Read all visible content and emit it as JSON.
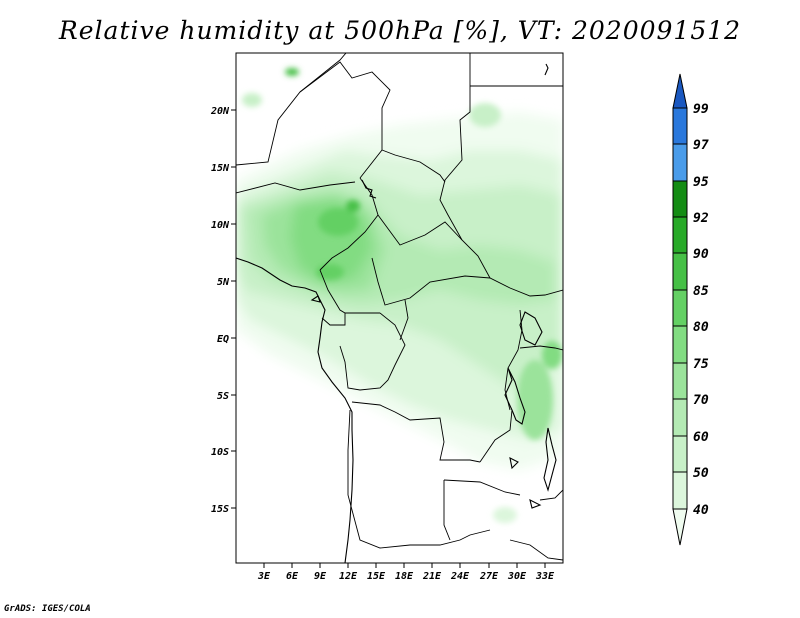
{
  "title": "Relative humidity at 500hPa [%], VT: 2020091512",
  "credit": "GrADS: IGES/COLA",
  "map": {
    "variable": "Relative humidity",
    "level": "500hPa",
    "units": "%",
    "valid_time": "2020091512",
    "lat_labels": [
      "20N",
      "15N",
      "10N",
      "5N",
      "EQ",
      "5S",
      "10S",
      "15S"
    ],
    "lon_labels": [
      "3E",
      "6E",
      "9E",
      "12E",
      "15E",
      "18E",
      "21E",
      "24E",
      "27E",
      "30E",
      "33E"
    ]
  },
  "colorbar": {
    "levels": [
      "40",
      "50",
      "60",
      "70",
      "75",
      "80",
      "85",
      "90",
      "92",
      "95",
      "97",
      "99"
    ],
    "colors": [
      "#f0fcf0",
      "#dcf6dc",
      "#c8f0c8",
      "#b4eab4",
      "#9be39b",
      "#82dc82",
      "#64d064",
      "#46c046",
      "#28aa28",
      "#148c14",
      "#4a9cea",
      "#2a78dc",
      "#1a58c0"
    ]
  }
}
